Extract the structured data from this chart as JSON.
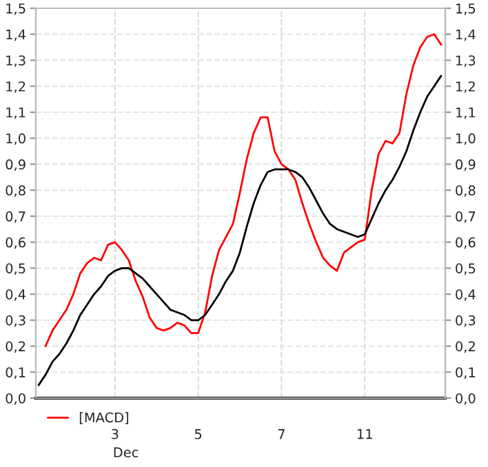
{
  "chart_data": {
    "type": "line",
    "categories": [
      null,
      null,
      null,
      null,
      null,
      null,
      null,
      null,
      null,
      null,
      null,
      "3",
      null,
      null,
      null,
      null,
      null,
      null,
      null,
      null,
      null,
      null,
      null,
      "5",
      null,
      null,
      null,
      null,
      null,
      null,
      null,
      null,
      null,
      null,
      null,
      "7",
      null,
      null,
      null,
      null,
      null,
      null,
      null,
      null,
      null,
      null,
      null,
      "11",
      null,
      null,
      null,
      null,
      null,
      null,
      null,
      null,
      null,
      null,
      null
    ],
    "ylim": [
      0,
      1.5
    ],
    "yticks": [
      {
        "value": 0,
        "label": "0,0"
      },
      {
        "value": 0.1,
        "label": "0,1"
      },
      {
        "value": 0.2,
        "label": "0,2"
      },
      {
        "value": 0.3,
        "label": "0,3"
      },
      {
        "value": 0.4,
        "label": "0,4"
      },
      {
        "value": 0.5,
        "label": "0,5"
      },
      {
        "value": 0.6,
        "label": "0,6"
      },
      {
        "value": 0.7,
        "label": "0,7"
      },
      {
        "value": 0.8,
        "label": "0,8"
      },
      {
        "value": 0.9,
        "label": "0,9"
      },
      {
        "value": 1.0,
        "label": "1,0"
      },
      {
        "value": 1.1,
        "label": "1,1"
      },
      {
        "value": 1.2,
        "label": "1,2"
      },
      {
        "value": 1.3,
        "label": "1,3"
      },
      {
        "value": 1.4,
        "label": "1,4"
      },
      {
        "value": 1.5,
        "label": "1,5"
      }
    ],
    "y2lim": [
      0,
      1.5
    ],
    "y2ticks": [
      {
        "value": 0,
        "label": "0,0"
      },
      {
        "value": 0.1,
        "label": "0,1"
      },
      {
        "value": 0.2,
        "label": "0,2"
      },
      {
        "value": 0.3,
        "label": "0,3"
      },
      {
        "value": 0.4,
        "label": "0,4"
      },
      {
        "value": 0.5,
        "label": "0,5"
      },
      {
        "value": 0.6,
        "label": "0,6"
      },
      {
        "value": 0.7,
        "label": "0,7"
      },
      {
        "value": 0.8,
        "label": "0,8"
      },
      {
        "value": 0.9,
        "label": "0,9"
      },
      {
        "value": 1.0,
        "label": "1,0"
      },
      {
        "value": 1.1,
        "label": "1,1"
      },
      {
        "value": 1.2,
        "label": "1,2"
      },
      {
        "value": 1.3,
        "label": "1,3"
      },
      {
        "value": 1.4,
        "label": "1,4"
      },
      {
        "value": 1.5,
        "label": "1,5"
      }
    ],
    "grid": true,
    "legend": "bottom",
    "line_style": "solid",
    "marker": "none",
    "annotations": [
      "Dec"
    ],
    "series": [
      {
        "name": "[MACD]",
        "color": "#ff0000",
        "values": [
          null,
          0.2,
          0.26,
          0.3,
          0.34,
          0.4,
          0.48,
          0.52,
          0.54,
          0.53,
          0.59,
          0.6,
          0.57,
          0.53,
          0.45,
          0.39,
          0.31,
          0.27,
          0.26,
          0.27,
          0.29,
          0.28,
          0.25,
          0.25,
          0.33,
          0.47,
          0.57,
          0.62,
          0.67,
          0.79,
          0.92,
          1.02,
          1.08,
          1.08,
          0.95,
          0.9,
          0.88,
          0.84,
          0.75,
          0.67,
          0.6,
          0.54,
          0.51,
          0.49,
          0.56,
          0.58,
          0.6,
          0.61,
          0.8,
          0.94,
          0.99,
          0.98,
          1.02,
          1.17,
          1.28,
          1.35,
          1.39,
          1.4,
          1.36
        ]
      },
      {
        "color": "#000000",
        "values": [
          0.05,
          0.09,
          0.14,
          0.17,
          0.21,
          0.26,
          0.32,
          0.36,
          0.4,
          0.43,
          0.47,
          0.49,
          0.5,
          0.5,
          0.48,
          0.46,
          0.43,
          0.4,
          0.37,
          0.34,
          0.33,
          0.32,
          0.3,
          0.3,
          0.32,
          0.36,
          0.4,
          0.45,
          0.49,
          0.56,
          0.66,
          0.75,
          0.82,
          0.87,
          0.88,
          0.88,
          0.88,
          0.87,
          0.85,
          0.81,
          0.76,
          0.71,
          0.67,
          0.65,
          0.64,
          0.63,
          0.62,
          0.63,
          0.69,
          0.75,
          0.8,
          0.84,
          0.89,
          0.95,
          1.03,
          1.1,
          1.16,
          1.2,
          1.24
        ]
      }
    ]
  }
}
